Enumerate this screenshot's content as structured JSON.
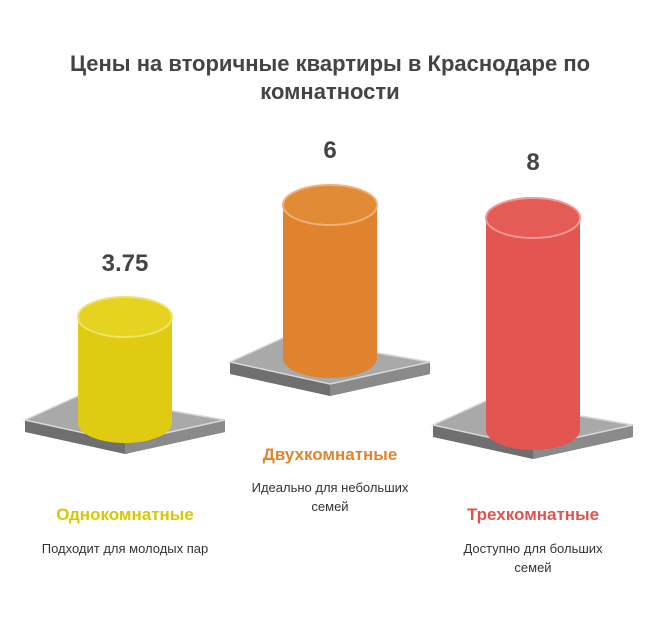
{
  "title": "Цены на вторичные квартиры в Краснодаре по комнатности",
  "items": [
    {
      "value": 3.75,
      "label": "Однокомнатные",
      "description": "Подходит для молодых пар"
    },
    {
      "value": 6,
      "label": "Двухкомнатные",
      "description": "Идеально для небольших семей"
    },
    {
      "value": 8,
      "label": "Трехкомнатные",
      "description": "Доступно для больших семей"
    }
  ]
}
